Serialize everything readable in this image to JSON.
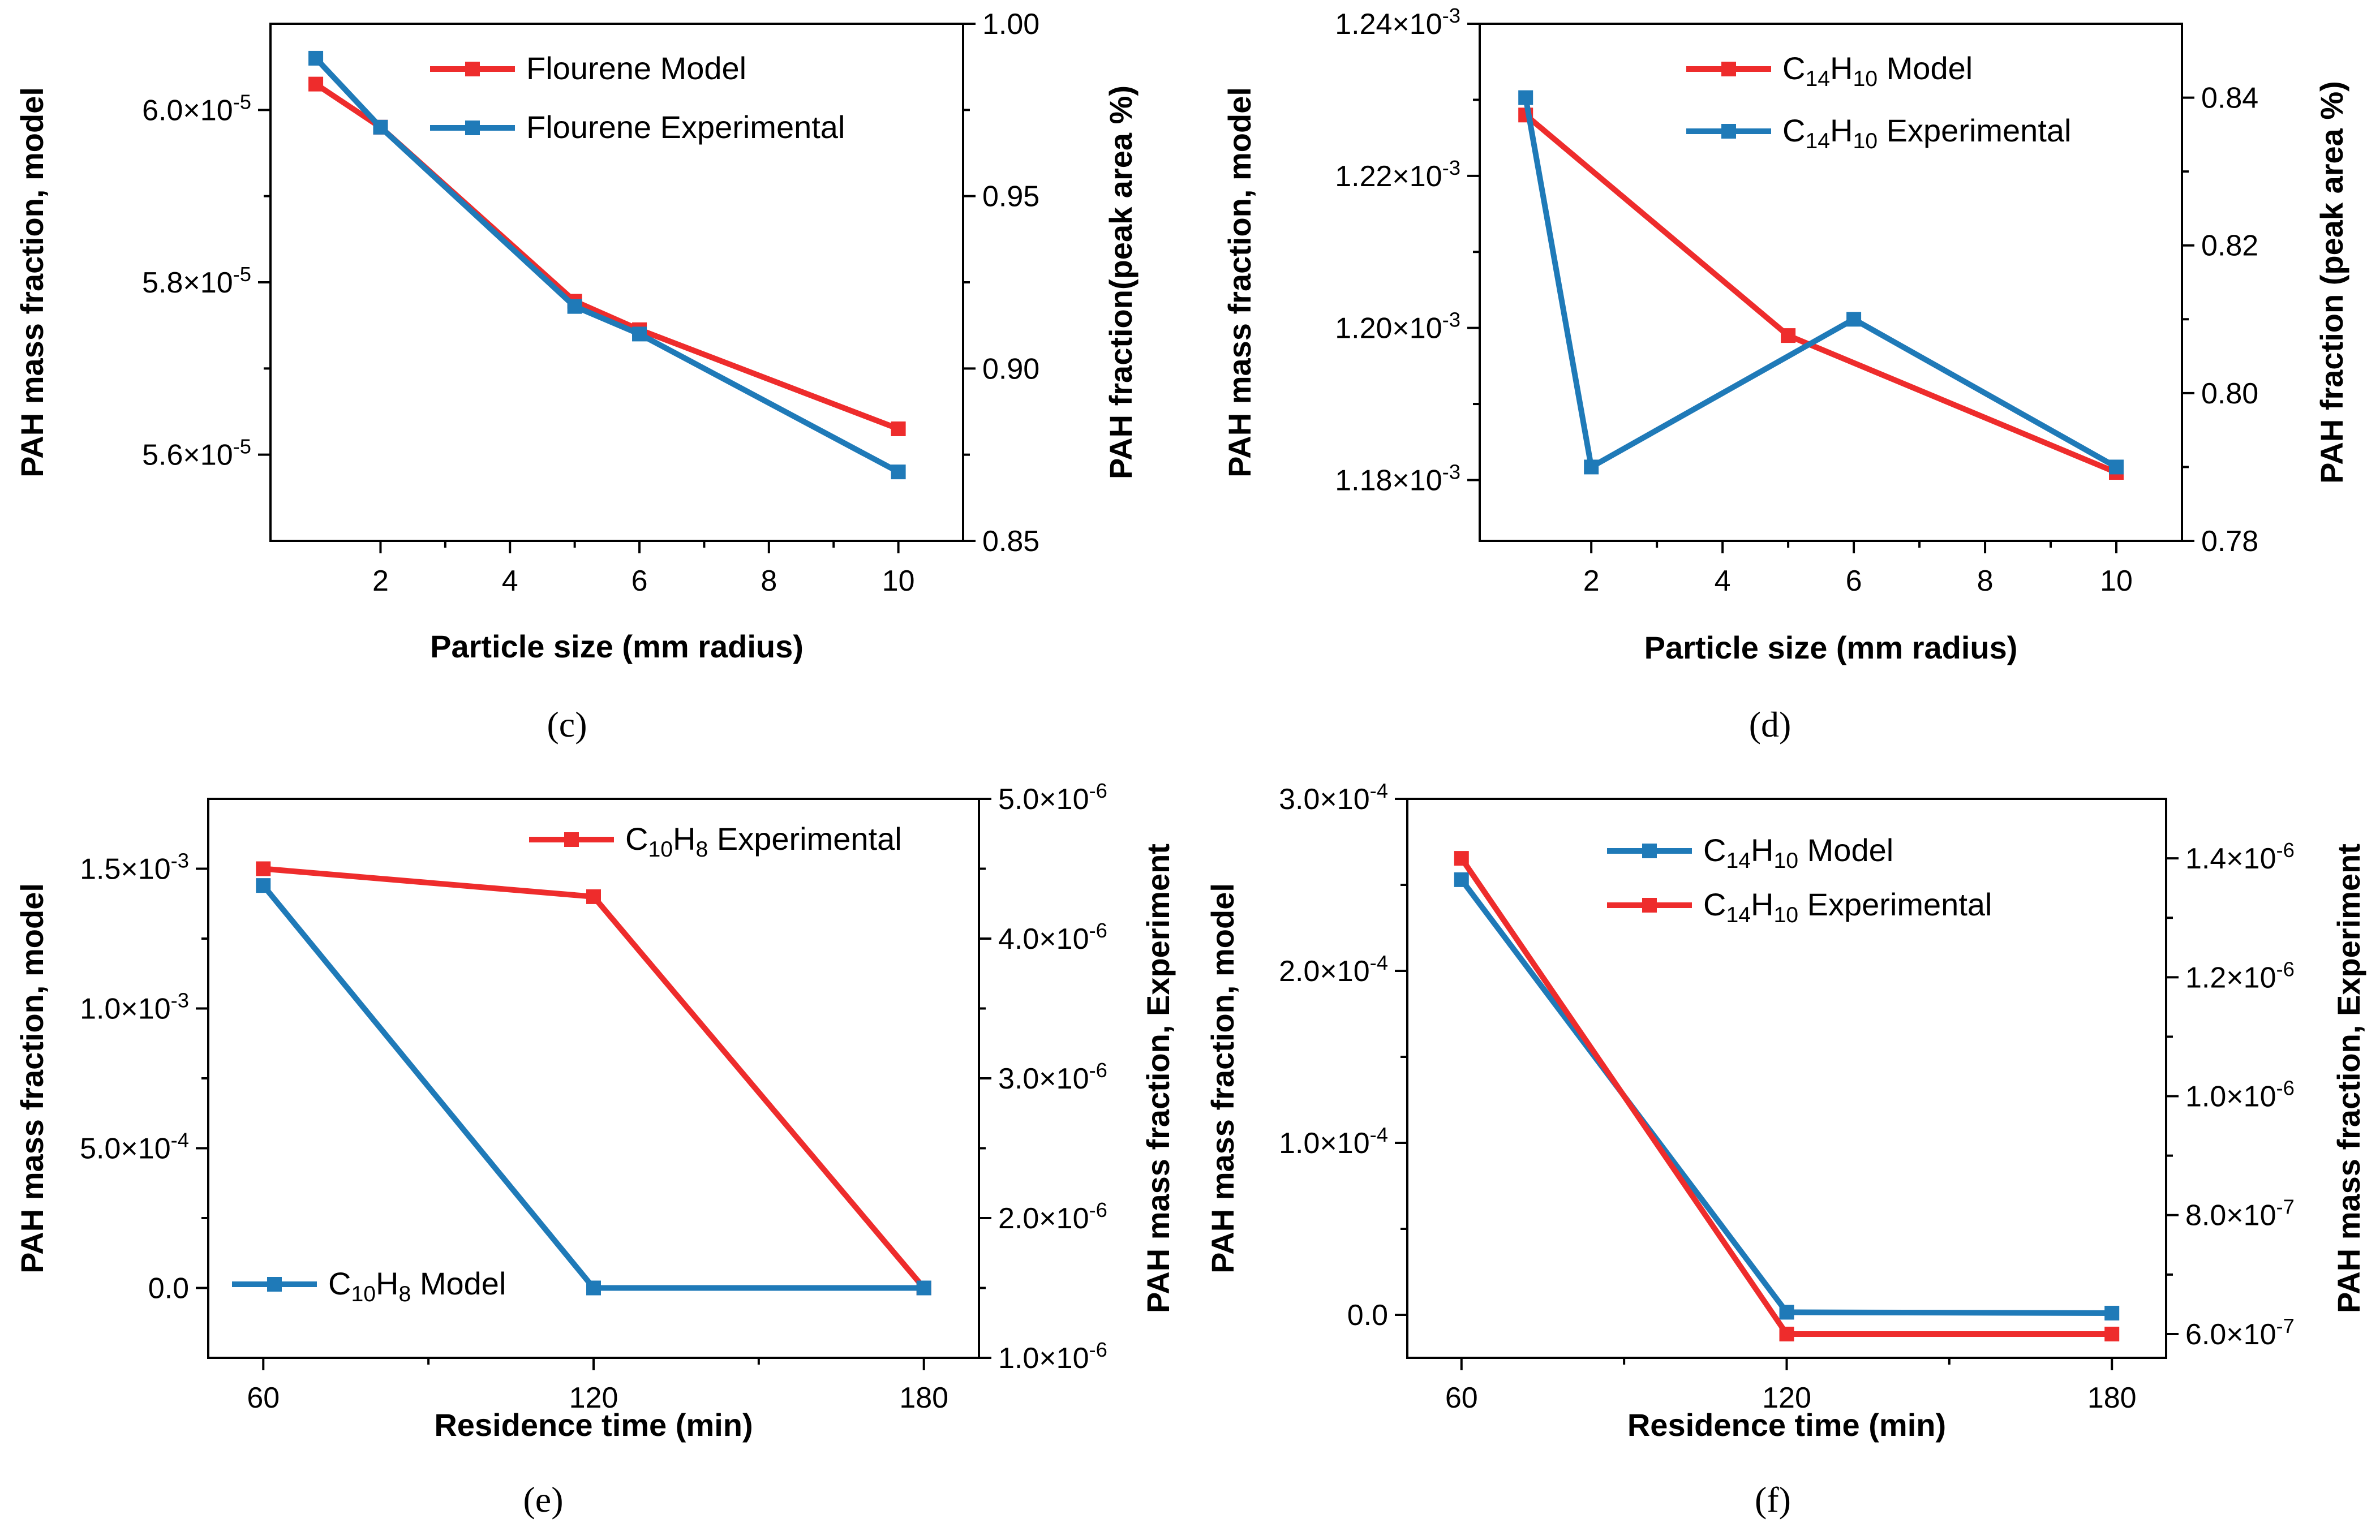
{
  "colors": {
    "red": "#ee2c2c",
    "blue": "#1f7ab8"
  },
  "chart_data": [
    {
      "panel": "(c)",
      "type": "line",
      "xlabel": "Particle size (mm radius)",
      "ylabel_left": "PAH mass fraction, model",
      "ylabel_right": "PAH fraction(peak area %)",
      "xlim": [
        0.3,
        11
      ],
      "xticks": [
        2,
        4,
        6,
        8,
        10
      ],
      "xtick_labels": [
        "2",
        "4",
        "6",
        "8",
        "10"
      ],
      "ylim_left": [
        5.5e-05,
        6.1e-05
      ],
      "yticks_left": [
        5.6e-05,
        5.8e-05,
        6e-05
      ],
      "ytick_labels_left": [
        [
          "5.6×10",
          "-5"
        ],
        [
          "5.8×10",
          "-5"
        ],
        [
          "6.0×10",
          "-5"
        ]
      ],
      "ylim_right": [
        0.85,
        1.0
      ],
      "yticks_right": [
        0.85,
        0.9,
        0.95,
        1.0
      ],
      "ytick_labels_right": [
        [
          "0.85",
          ""
        ],
        [
          "0.90",
          ""
        ],
        [
          "0.95",
          ""
        ],
        [
          "1.00",
          ""
        ]
      ],
      "legend_position": "top-right",
      "series": [
        {
          "name": [
            [
              "Flourene  Model",
              "n"
            ]
          ],
          "color": "red",
          "axis": "left",
          "x": [
            1,
            2,
            5,
            6,
            10
          ],
          "y": [
            6.03e-05,
            5.98e-05,
            5.778e-05,
            5.745e-05,
            5.63e-05
          ]
        },
        {
          "name": [
            [
              "Flourene  Experimental",
              "n"
            ]
          ],
          "color": "blue",
          "axis": "right",
          "x": [
            1,
            2,
            5,
            6,
            10
          ],
          "y": [
            0.99,
            0.97,
            0.918,
            0.91,
            0.87
          ]
        }
      ]
    },
    {
      "panel": "(d)",
      "type": "line",
      "xlabel": "Particle size (mm radius)",
      "ylabel_left": "PAH mass fraction, model",
      "ylabel_right": "PAH fraction (peak area %)",
      "xlim": [
        0.3,
        11
      ],
      "xticks": [
        2,
        4,
        6,
        8,
        10
      ],
      "xtick_labels": [
        "2",
        "4",
        "6",
        "8",
        "10"
      ],
      "ylim_left": [
        0.001172,
        0.00124
      ],
      "yticks_left": [
        0.00118,
        0.0012,
        0.00122,
        0.00124
      ],
      "ytick_labels_left": [
        [
          "1.18×10",
          "-3"
        ],
        [
          "1.20×10",
          "-3"
        ],
        [
          "1.22×10",
          "-3"
        ],
        [
          "1.24×10",
          "-3"
        ]
      ],
      "ylim_right": [
        0.78,
        0.85
      ],
      "yticks_right": [
        0.78,
        0.8,
        0.82,
        0.84
      ],
      "ytick_labels_right": [
        [
          "0.78",
          ""
        ],
        [
          "0.80",
          ""
        ],
        [
          "0.82",
          ""
        ],
        [
          "0.84",
          ""
        ]
      ],
      "legend_position": "top-right",
      "series": [
        {
          "name": [
            [
              "C",
              "n"
            ],
            [
              "14",
              "sub"
            ],
            [
              "H",
              "n"
            ],
            [
              "10",
              "sub"
            ],
            [
              " Model",
              "n"
            ]
          ],
          "color": "red",
          "axis": "left",
          "x": [
            1,
            5,
            10
          ],
          "y": [
            0.001228,
            0.001199,
            0.001181
          ]
        },
        {
          "name": [
            [
              "C",
              "n"
            ],
            [
              "14",
              "sub"
            ],
            [
              "H",
              "n"
            ],
            [
              "10",
              "sub"
            ],
            [
              " Experimental",
              "n"
            ]
          ],
          "color": "blue",
          "axis": "right",
          "x": [
            1,
            2,
            6,
            10
          ],
          "y": [
            0.84,
            0.79,
            0.81,
            0.79
          ]
        }
      ]
    },
    {
      "panel": "(e)",
      "type": "line",
      "xlabel": "Residence time (min)",
      "ylabel_left": "PAH mass fraction, model",
      "ylabel_right": "PAH mass fraction, Experiment",
      "xlim": [
        50,
        190
      ],
      "xticks": [
        60,
        120,
        180
      ],
      "xtick_labels": [
        "60",
        "120",
        "180"
      ],
      "ylim_left": [
        -0.00025,
        0.00175
      ],
      "yticks_left": [
        0,
        0.0005,
        0.001,
        0.0015
      ],
      "ytick_labels_left": [
        [
          "0.0",
          ""
        ],
        [
          "5.0×10",
          "-4"
        ],
        [
          "1.0×10",
          "-3"
        ],
        [
          "1.5×10",
          "-3"
        ]
      ],
      "ylim_right": [
        1e-06,
        5e-06
      ],
      "yticks_right": [
        1e-06,
        2e-06,
        3e-06,
        4e-06,
        5e-06
      ],
      "ytick_labels_right": [
        [
          "1.0×10",
          "-6"
        ],
        [
          "2.0×10",
          "-6"
        ],
        [
          "3.0×10",
          "-6"
        ],
        [
          "4.0×10",
          "-6"
        ],
        [
          "5.0×10",
          "-6"
        ]
      ],
      "legend_position": "split (top-right and bottom-left)",
      "series": [
        {
          "name": [
            [
              "C",
              "n"
            ],
            [
              "10",
              "sub"
            ],
            [
              "H",
              "n"
            ],
            [
              "8",
              "sub"
            ],
            [
              "  Experimental",
              "n"
            ]
          ],
          "color": "red",
          "axis": "right",
          "x": [
            60,
            120,
            180
          ],
          "y": [
            4.5e-06,
            4.3e-06,
            1.5e-06
          ]
        },
        {
          "name": [
            [
              "C",
              "n"
            ],
            [
              "10",
              "sub"
            ],
            [
              "H",
              "n"
            ],
            [
              "8",
              "sub"
            ],
            [
              "   Model",
              "n"
            ]
          ],
          "color": "blue",
          "axis": "left",
          "x": [
            60,
            120,
            180
          ],
          "y": [
            0.00144,
            0,
            0
          ]
        }
      ]
    },
    {
      "panel": "(f)",
      "type": "line",
      "xlabel": "Residence time (min)",
      "ylabel_left": "PAH mass fraction, model",
      "ylabel_right": "PAH mass fraction, Experiment",
      "xlim": [
        50,
        190
      ],
      "xticks": [
        60,
        120,
        180
      ],
      "xtick_labels": [
        "60",
        "120",
        "180"
      ],
      "ylim_left": [
        -2.5e-05,
        0.0003
      ],
      "yticks_left": [
        0,
        0.0001,
        0.0002,
        0.0003
      ],
      "ytick_labels_left": [
        [
          "0.0",
          ""
        ],
        [
          "1.0×10",
          "-4"
        ],
        [
          "2.0×10",
          "-4"
        ],
        [
          "3.0×10",
          "-4"
        ]
      ],
      "ylim_right": [
        5.6e-07,
        1.5e-06
      ],
      "yticks_right": [
        6e-07,
        8e-07,
        1e-06,
        1.2e-06,
        1.4e-06
      ],
      "ytick_labels_right": [
        [
          "6.0×10",
          "-7"
        ],
        [
          "8.0×10",
          "-7"
        ],
        [
          "1.0×10",
          "-6"
        ],
        [
          "1.2×10",
          "-6"
        ],
        [
          "1.4×10",
          "-6"
        ]
      ],
      "legend_position": "top-right",
      "series": [
        {
          "name": [
            [
              "C",
              "n"
            ],
            [
              "14",
              "sub"
            ],
            [
              "H",
              "n"
            ],
            [
              "10",
              "sub"
            ],
            [
              "  Model",
              "n"
            ]
          ],
          "color": "blue",
          "axis": "left",
          "x": [
            60,
            120,
            180
          ],
          "y": [
            0.000253,
            1.5e-06,
            1e-06
          ]
        },
        {
          "name": [
            [
              "C",
              "n"
            ],
            [
              "14",
              "sub"
            ],
            [
              "H",
              "n"
            ],
            [
              "10",
              "sub"
            ],
            [
              "  Experimental",
              "n"
            ]
          ],
          "color": "red",
          "axis": "right",
          "x": [
            60,
            120,
            180
          ],
          "y": [
            1.4e-06,
            6e-07,
            6e-07
          ]
        }
      ]
    }
  ]
}
